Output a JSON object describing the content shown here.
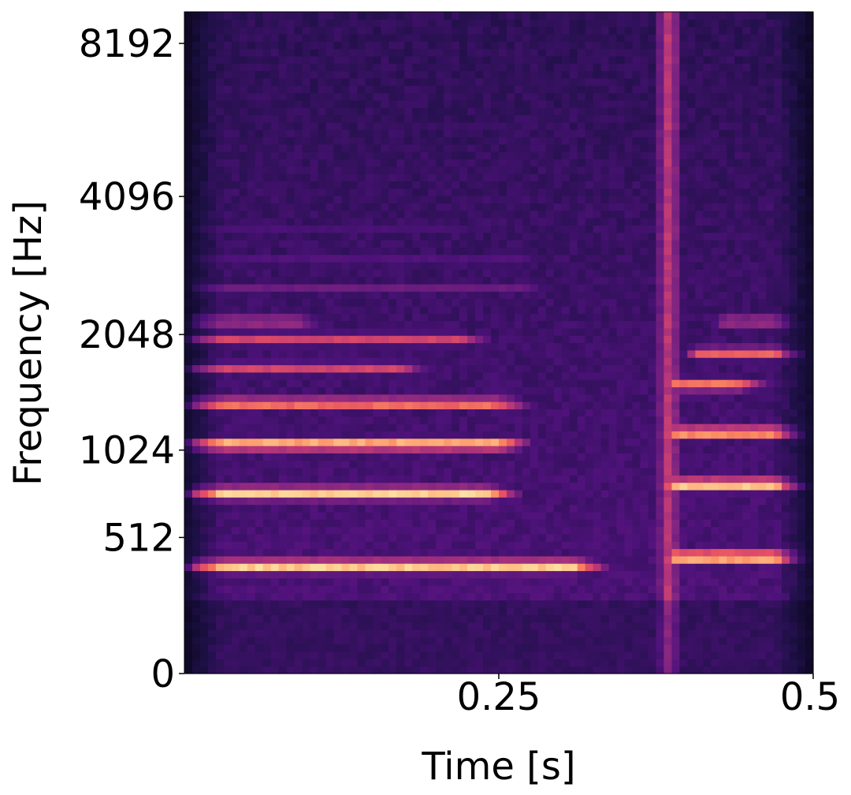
{
  "chart_data": {
    "type": "heatmap",
    "subtype": "mel-spectrogram",
    "title": "",
    "xlabel": "Time [s]",
    "ylabel": "Frequency [Hz]",
    "xlim": [
      0,
      0.5
    ],
    "x_ticks": [
      {
        "value": 0.25,
        "label": "0.25"
      },
      {
        "value": 0.5,
        "label": "0.5"
      }
    ],
    "y_scale": "mel",
    "y_ticks": [
      {
        "value": 0,
        "label": "0"
      },
      {
        "value": 512,
        "label": "512"
      },
      {
        "value": 1024,
        "label": "1024"
      },
      {
        "value": 2048,
        "label": "2048"
      },
      {
        "value": 4096,
        "label": "4096"
      },
      {
        "value": 8192,
        "label": "8192"
      }
    ],
    "colormap": "magma",
    "colormap_stops": [
      "#000004",
      "#1c1044",
      "#4f127b",
      "#812581",
      "#b5367a",
      "#e55064",
      "#fb8761",
      "#fec287",
      "#fcfdbf"
    ],
    "grid": false,
    "legend": "none",
    "harmonic_bands": [
      {
        "freq": 380,
        "t_start": 0.0,
        "t_end": 0.34,
        "intensity": 0.95
      },
      {
        "freq": 750,
        "t_start": 0.0,
        "t_end": 0.27,
        "intensity": 0.95
      },
      {
        "freq": 1070,
        "t_start": 0.0,
        "t_end": 0.28,
        "intensity": 0.9
      },
      {
        "freq": 1380,
        "t_start": 0.0,
        "t_end": 0.28,
        "intensity": 0.75
      },
      {
        "freq": 1700,
        "t_start": 0.0,
        "t_end": 0.2,
        "intensity": 0.6
      },
      {
        "freq": 2000,
        "t_start": 0.0,
        "t_end": 0.25,
        "intensity": 0.6
      },
      {
        "freq": 2200,
        "t_start": 0.0,
        "t_end": 0.12,
        "intensity": 0.5
      },
      {
        "freq": 2600,
        "t_start": 0.0,
        "t_end": 0.3,
        "intensity": 0.35
      },
      {
        "freq": 3000,
        "t_start": 0.0,
        "t_end": 0.3,
        "intensity": 0.3
      },
      {
        "freq": 3500,
        "t_start": 0.0,
        "t_end": 0.25,
        "intensity": 0.25
      },
      {
        "freq": 420,
        "t_start": 0.38,
        "t_end": 0.5,
        "intensity": 0.95
      },
      {
        "freq": 800,
        "t_start": 0.38,
        "t_end": 0.5,
        "intensity": 0.95
      },
      {
        "freq": 1150,
        "t_start": 0.38,
        "t_end": 0.5,
        "intensity": 0.85
      },
      {
        "freq": 1550,
        "t_start": 0.38,
        "t_end": 0.47,
        "intensity": 0.75
      },
      {
        "freq": 1850,
        "t_start": 0.4,
        "t_end": 0.5,
        "intensity": 0.7
      },
      {
        "freq": 2200,
        "t_start": 0.42,
        "t_end": 0.5,
        "intensity": 0.5
      }
    ],
    "broadband_events": [
      {
        "t": 0.385,
        "width": 0.02,
        "intensity": 0.55
      }
    ]
  }
}
